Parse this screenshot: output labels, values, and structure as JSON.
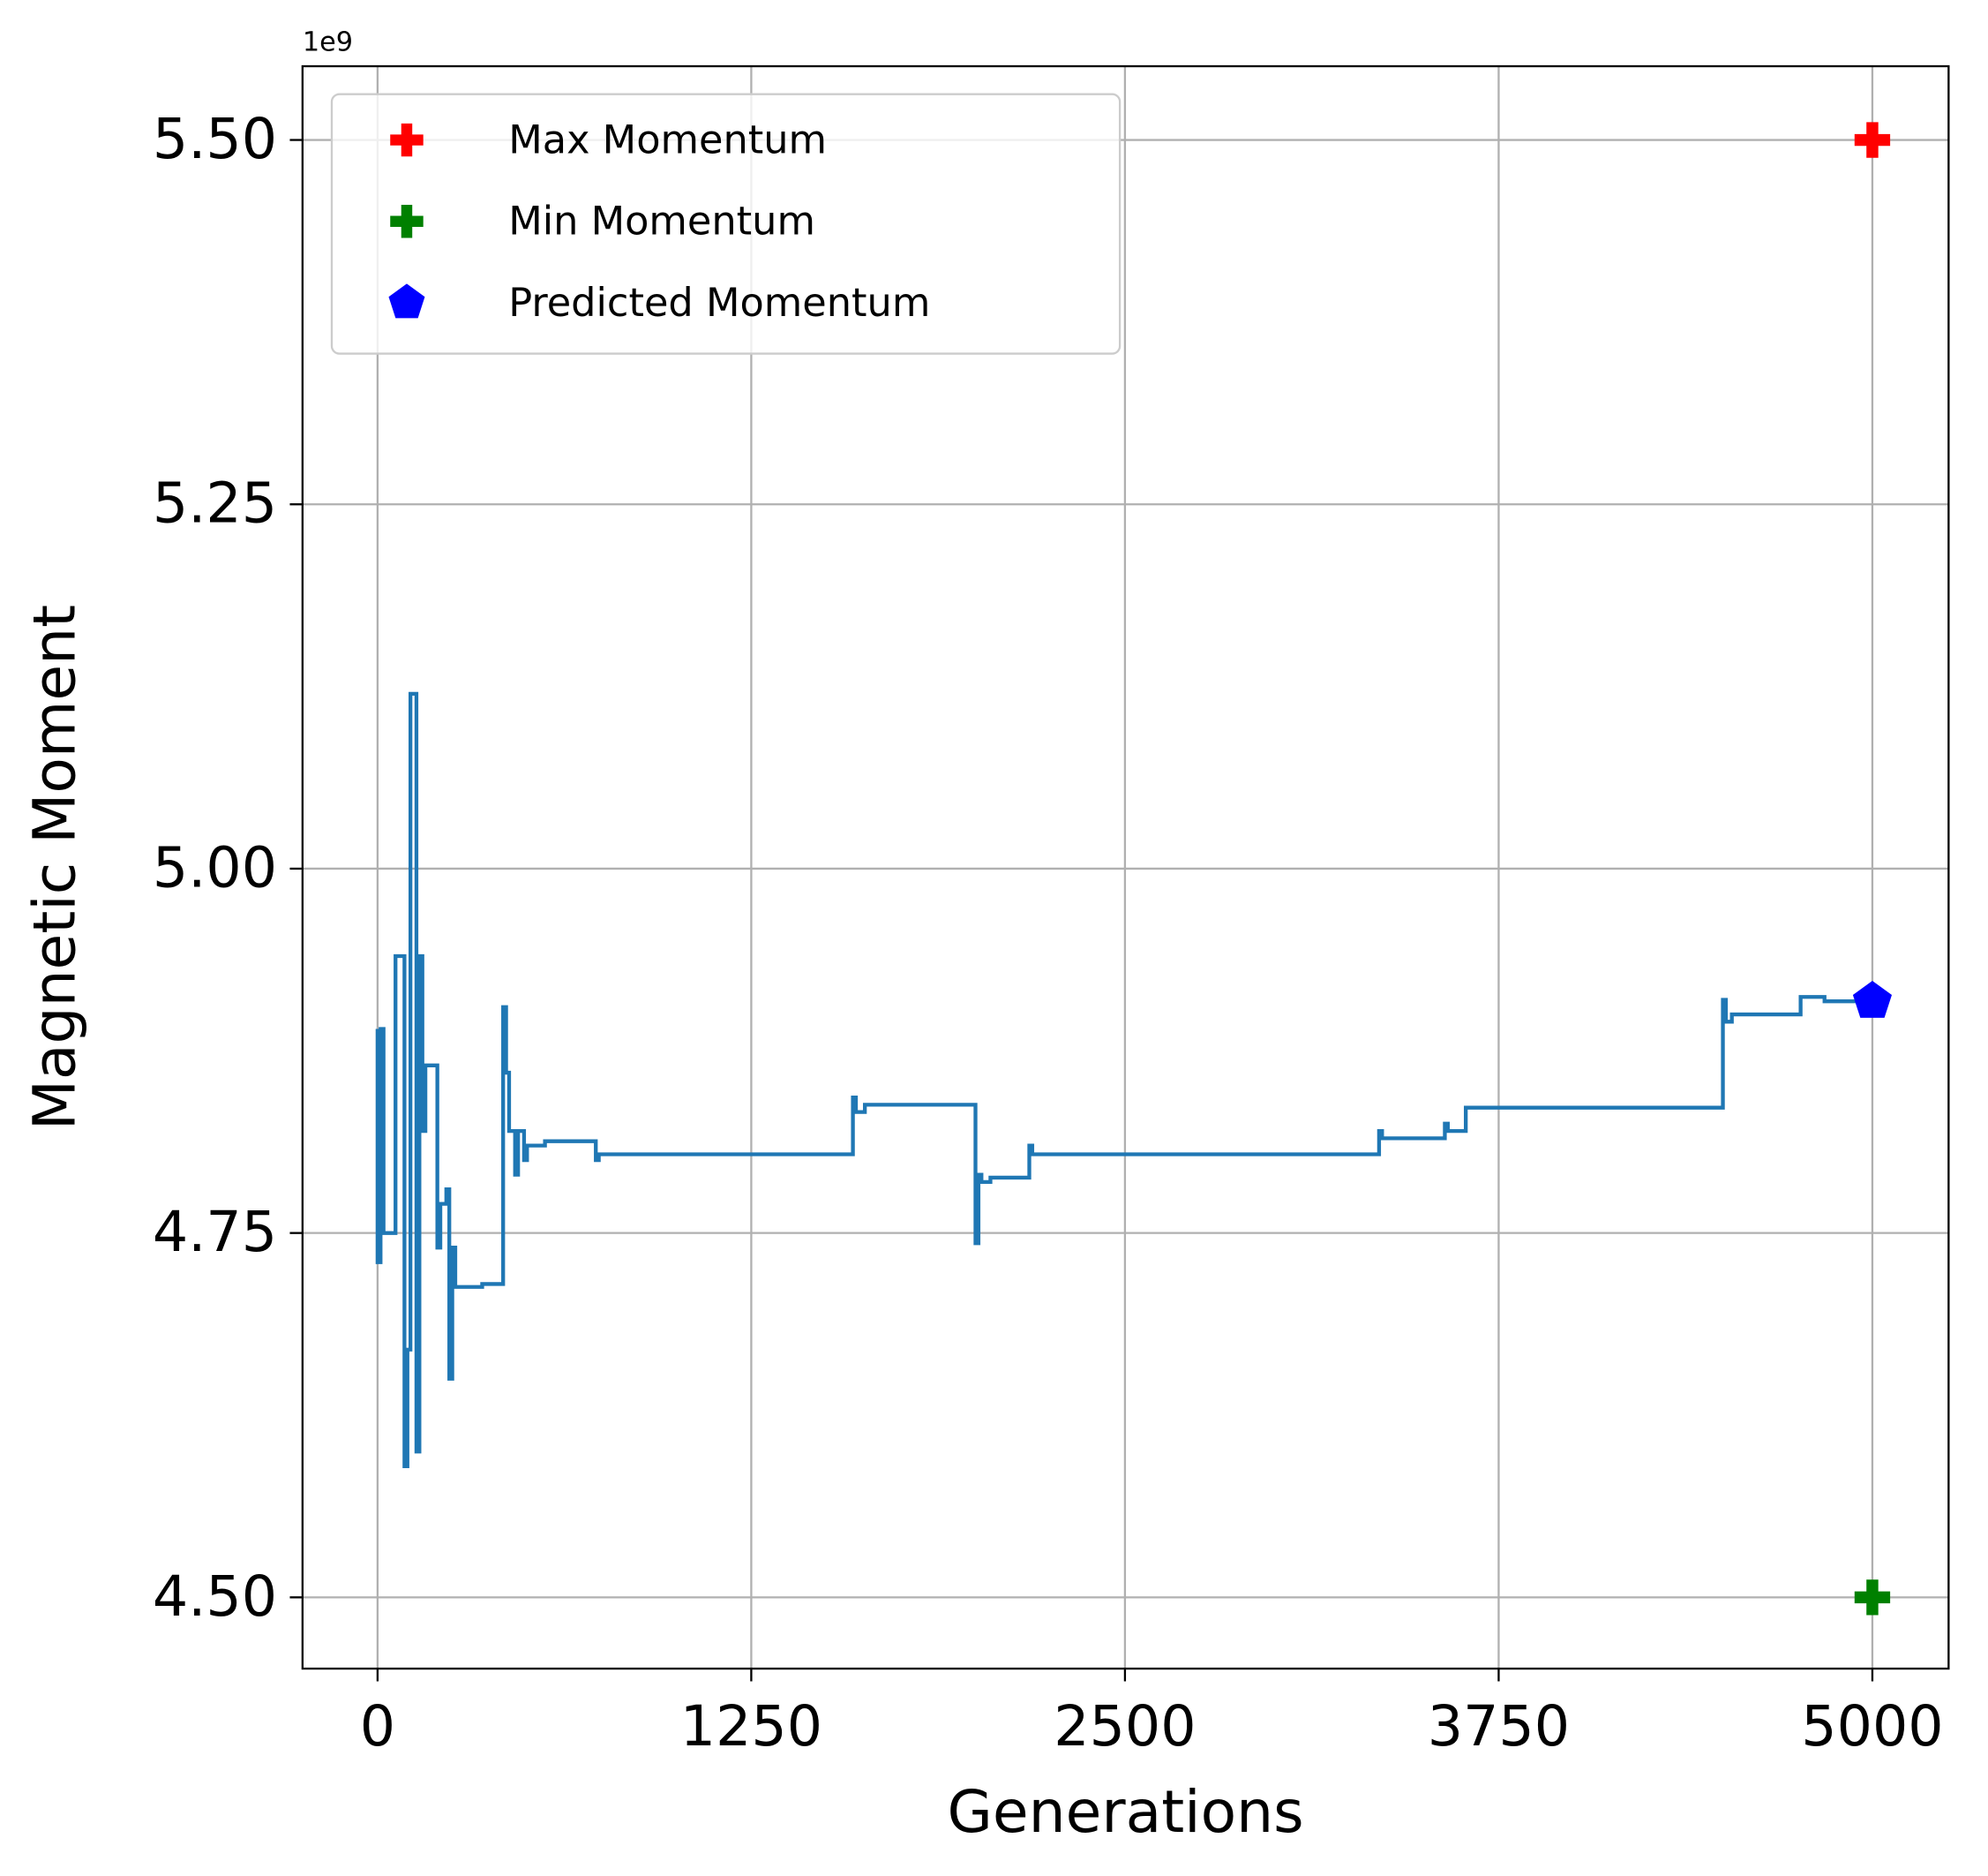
{
  "chart_data": {
    "type": "line",
    "x_label": "Generations",
    "y_label": "Magnetic Moment",
    "y_offset_label": "1e9",
    "xlim": [
      -251,
      5255
    ],
    "ylim": [
      4.4511,
      5.5506
    ],
    "xticks": [
      0,
      1250,
      2500,
      3750,
      5000
    ],
    "yticks": [
      {
        "value": 4.5,
        "label": "4.50"
      },
      {
        "value": 4.75,
        "label": "4.75"
      },
      {
        "value": 5.0,
        "label": "5.00"
      },
      {
        "value": 5.25,
        "label": "5.25"
      },
      {
        "value": 5.5,
        "label": "5.50"
      }
    ],
    "grid": true,
    "legend": "upper left",
    "series": [
      {
        "color": "#1f77b4",
        "x": [
          0,
          0,
          10,
          10,
          20,
          20,
          60,
          60,
          90,
          90,
          100,
          100,
          110,
          110,
          130,
          130,
          140,
          140,
          150,
          150,
          160,
          160,
          200,
          200,
          210,
          210,
          230,
          230,
          240,
          240,
          250,
          250,
          260,
          260,
          350,
          350,
          420,
          420,
          430,
          430,
          440,
          440,
          460,
          460,
          470,
          470,
          490,
          490,
          500,
          500,
          560,
          560,
          730,
          730,
          740,
          740,
          1590,
          1590,
          1600,
          1600,
          1630,
          1630,
          2000,
          2000,
          2010,
          2010,
          2020,
          2020,
          2050,
          2050,
          2180,
          2180,
          2190,
          2190,
          3350,
          3350,
          3360,
          3360,
          3570,
          3570,
          3580,
          3580,
          3640,
          3640,
          4500,
          4500,
          4510,
          4510,
          4530,
          4530,
          4760,
          4760,
          4840,
          4840,
          5000
        ],
        "values": [
          4.89,
          4.73,
          4.73,
          4.89,
          4.89,
          4.75,
          4.75,
          4.94,
          4.94,
          4.59,
          4.59,
          4.67,
          4.67,
          5.12,
          5.12,
          4.6,
          4.6,
          4.94,
          4.94,
          4.82,
          4.82,
          4.865,
          4.865,
          4.74,
          4.74,
          4.77,
          4.77,
          4.78,
          4.78,
          4.65,
          4.65,
          4.74,
          4.74,
          4.713,
          4.713,
          4.715,
          4.715,
          4.905,
          4.905,
          4.86,
          4.86,
          4.82,
          4.82,
          4.79,
          4.79,
          4.82,
          4.82,
          4.8,
          4.8,
          4.81,
          4.81,
          4.813,
          4.813,
          4.8,
          4.8,
          4.804,
          4.804,
          4.843,
          4.843,
          4.833,
          4.833,
          4.838,
          4.838,
          4.743,
          4.743,
          4.79,
          4.79,
          4.785,
          4.785,
          4.788,
          4.788,
          4.81,
          4.81,
          4.804,
          4.804,
          4.82,
          4.82,
          4.815,
          4.815,
          4.825,
          4.825,
          4.82,
          4.82,
          4.836,
          4.836,
          4.91,
          4.91,
          4.895,
          4.895,
          4.9,
          4.9,
          4.912,
          4.912,
          4.909,
          4.909
        ]
      },
      {
        "name": "Max Momentum",
        "color": "#ff0000",
        "marker": "plus",
        "x": [
          5000
        ],
        "values": [
          5.5
        ]
      },
      {
        "name": "Min Momentum",
        "color": "#008000",
        "marker": "plus",
        "x": [
          5000
        ],
        "values": [
          4.5
        ]
      },
      {
        "name": "Predicted Momentum",
        "color": "#0000ff",
        "marker": "pentagon",
        "x": [
          5000
        ],
        "values": [
          4.909
        ]
      }
    ]
  }
}
